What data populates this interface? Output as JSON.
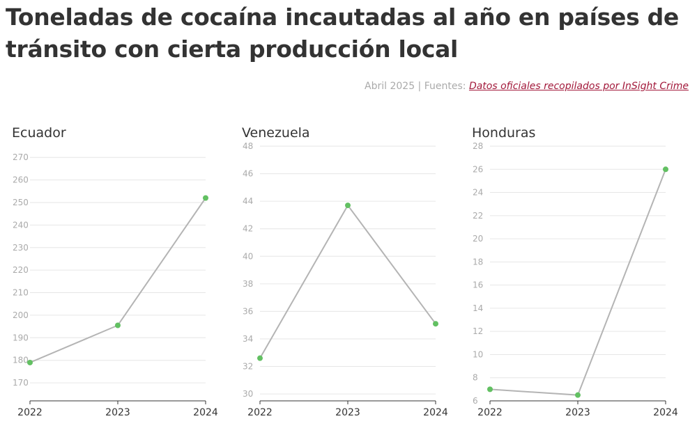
{
  "header": {
    "title": "Toneladas de cocaína incautadas al año en países de tránsito con cierta producción local",
    "date_prefix": "Abril 2025 | Fuentes: ",
    "source_link": "Datos oficiales recopilados por InSight Crime"
  },
  "colors": {
    "line": "#b4b4b4",
    "point": "#62c062",
    "grid": "#e6e6e6",
    "axis": "#333333",
    "link": "#a2183a"
  },
  "chart_data": [
    {
      "type": "line",
      "title": "Ecuador",
      "x": [
        "2022",
        "2023",
        "2024"
      ],
      "values": [
        179,
        195.5,
        252
      ],
      "ylim": [
        162,
        275
      ],
      "yticks": [
        170,
        180,
        190,
        200,
        210,
        220,
        230,
        240,
        250,
        260,
        270
      ],
      "grid": true
    },
    {
      "type": "line",
      "title": "Venezuela",
      "x": [
        "2022",
        "2023",
        "2024"
      ],
      "values": [
        32.6,
        43.7,
        35.1
      ],
      "ylim": [
        29.5,
        48
      ],
      "yticks": [
        30,
        32,
        34,
        36,
        38,
        40,
        42,
        44,
        46,
        48
      ],
      "grid": true
    },
    {
      "type": "line",
      "title": "Honduras",
      "x": [
        "2022",
        "2023",
        "2024"
      ],
      "values": [
        7,
        6.5,
        26
      ],
      "ylim": [
        6,
        28
      ],
      "yticks": [
        6,
        8,
        10,
        12,
        14,
        16,
        18,
        20,
        22,
        24,
        26,
        28
      ],
      "grid": true
    }
  ]
}
